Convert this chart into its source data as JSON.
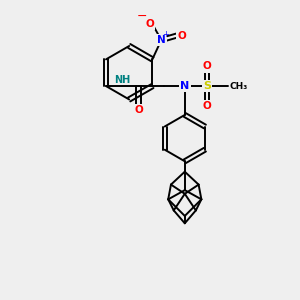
{
  "background_color": "#efefef",
  "atom_colors": {
    "N": "#0000ff",
    "O": "#ff0000",
    "S": "#cccc00",
    "C": "#000000",
    "H": "#008080"
  },
  "bond_color": "#000000",
  "bond_width": 1.4,
  "figsize": [
    3.0,
    3.0
  ],
  "dpi": 100
}
